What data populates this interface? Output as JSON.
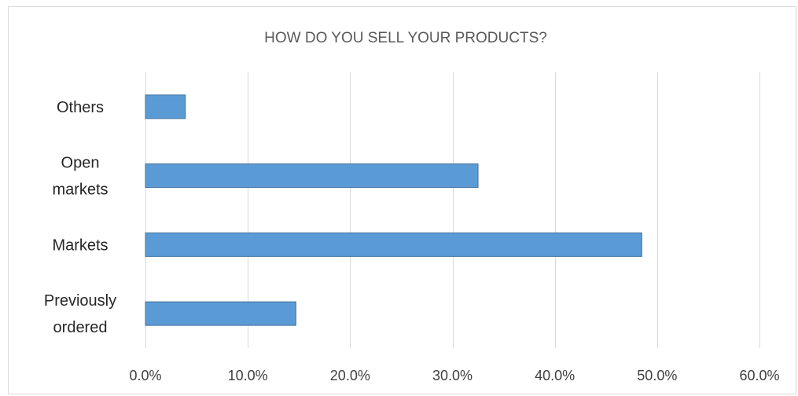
{
  "chart_data": {
    "type": "bar",
    "orientation": "horizontal",
    "title": "HOW DO YOU SELL YOUR PRODUCTS?",
    "categories": [
      "Others",
      "Open markets",
      "Markets",
      "Previously ordered"
    ],
    "category_lines": [
      [
        "Others"
      ],
      [
        "Open",
        "markets"
      ],
      [
        "Markets"
      ],
      [
        "Previously",
        "ordered"
      ]
    ],
    "values": [
      3.9,
      32.5,
      48.5,
      14.7
    ],
    "xlim": [
      0,
      60
    ],
    "x_ticks": [
      0,
      10,
      20,
      30,
      40,
      50,
      60
    ],
    "x_tick_labels": [
      "0.0%",
      "10.0%",
      "20.0%",
      "30.0%",
      "40.0%",
      "50.0%",
      "60.0%"
    ],
    "xlabel": "",
    "ylabel": "",
    "grid": true,
    "bar_color": "#5b9bd5",
    "bar_edge_color": "#41719c",
    "grid_color": "#d9d9d9"
  }
}
